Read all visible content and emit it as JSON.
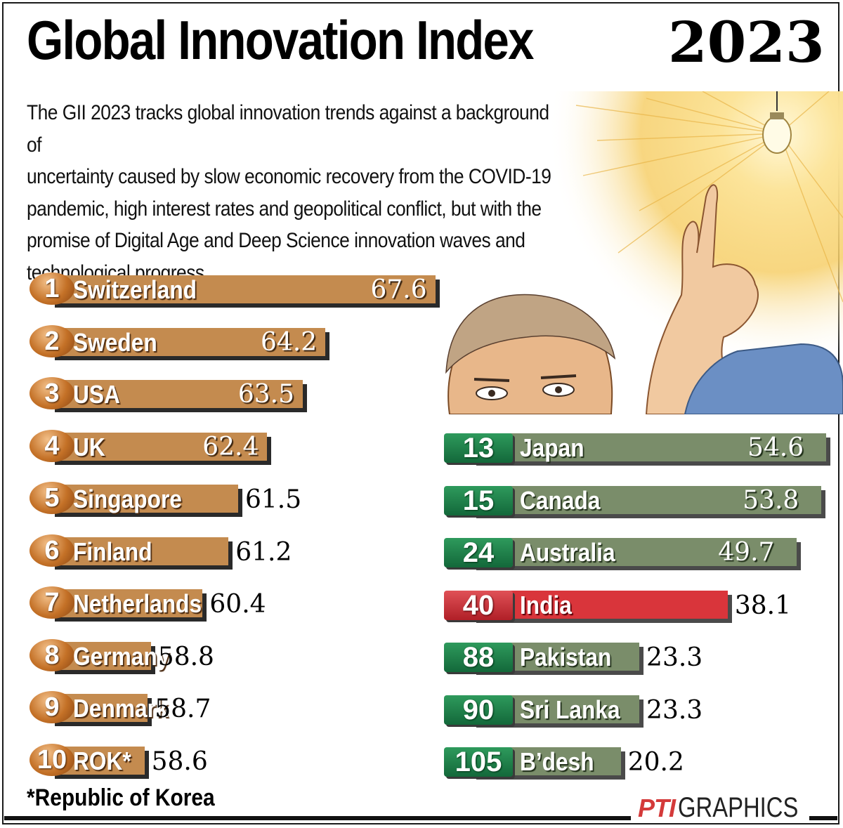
{
  "title": {
    "bold": "Global Innovation Index",
    "year": "2023"
  },
  "intro_lines": [
    "The GII 2023 tracks global innovation trends against a background of",
    "uncertainty caused by slow economic recovery from the COVID-19",
    "pandemic, high interest rates and geopolitical conflict, but with the",
    "promise of Digital Age and Deep Science innovation waves and",
    "technological progress"
  ],
  "footnote": "*Republic of Korea",
  "credit": {
    "agency": "PTI",
    "label": "GRAPHICS"
  },
  "colors": {
    "top10_bar": "#c48b4f",
    "other_bar": "#7a8d6a",
    "india_bar": "#d9353b",
    "rank_green": "#1f8a4c",
    "rank_bronze": "#c47127"
  },
  "chart_data": {
    "type": "bar",
    "orientation": "horizontal",
    "title": "Global Innovation Index 2023",
    "top10": [
      {
        "rank": "1",
        "country": "Switzerland",
        "value": "67.6"
      },
      {
        "rank": "2",
        "country": "Sweden",
        "value": "64.2"
      },
      {
        "rank": "3",
        "country": "USA",
        "value": "63.5"
      },
      {
        "rank": "4",
        "country": "UK",
        "value": "62.4"
      },
      {
        "rank": "5",
        "country": "Singapore",
        "value": "61.5"
      },
      {
        "rank": "6",
        "country": "Finland",
        "value": "61.2"
      },
      {
        "rank": "7",
        "country": "Netherlands",
        "value": "60.4"
      },
      {
        "rank": "8",
        "country": "Germany",
        "value": "58.8"
      },
      {
        "rank": "9",
        "country": "Denmark",
        "value": "58.7"
      },
      {
        "rank": "10",
        "country": "ROK*",
        "value": "58.6"
      }
    ],
    "others": [
      {
        "rank": "13",
        "country": "Japan",
        "value": "54.6"
      },
      {
        "rank": "15",
        "country": "Canada",
        "value": "53.8"
      },
      {
        "rank": "24",
        "country": "Australia",
        "value": "49.7"
      },
      {
        "rank": "40",
        "country": "India",
        "value": "38.1",
        "highlight": true
      },
      {
        "rank": "88",
        "country": "Pakistan",
        "value": "23.3"
      },
      {
        "rank": "90",
        "country": "Sri Lanka",
        "value": "23.3"
      },
      {
        "rank": "105",
        "country": "B’desh",
        "value": "20.2"
      }
    ]
  }
}
